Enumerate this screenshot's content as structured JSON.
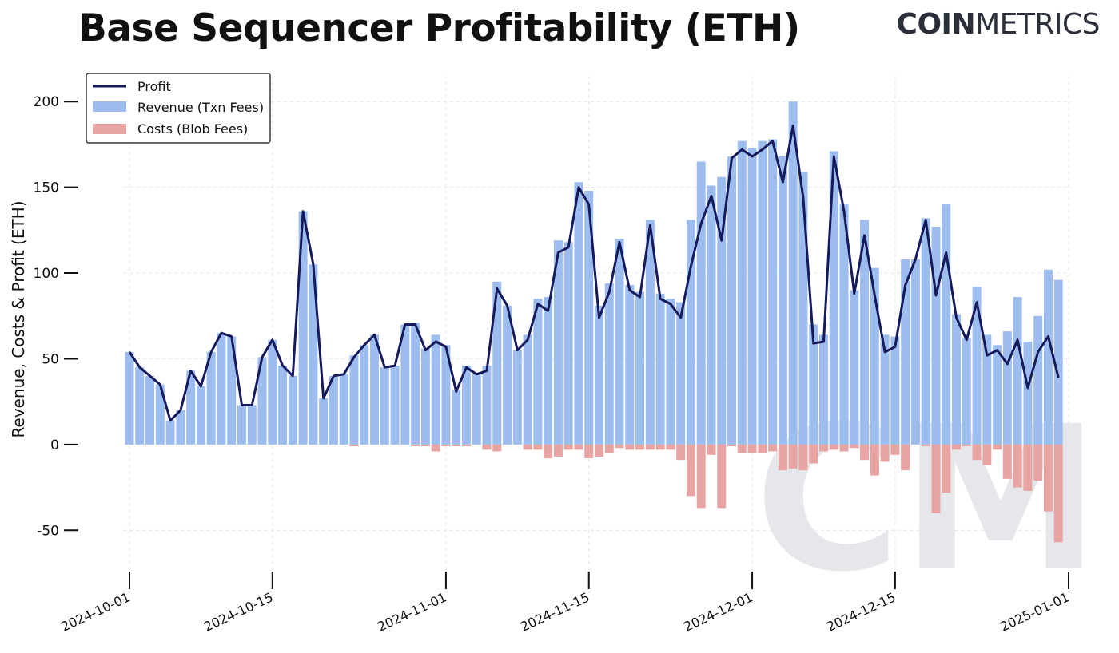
{
  "brand": {
    "bold": "COIN",
    "light": "METRICS"
  },
  "watermark": "CM",
  "chart_data": {
    "type": "bar",
    "title": "Base Sequencer Profitability (ETH)",
    "ylabel": "Revenue, Costs & Profit (ETH)",
    "xlabel": "",
    "ylim": [
      -75,
      215
    ],
    "yticks": [
      -50,
      0,
      50,
      100,
      150,
      200
    ],
    "x_start": "2024-10-01",
    "x_ticks": [
      "2024-10-01",
      "2024-10-15",
      "2024-11-01",
      "2024-11-15",
      "2024-12-01",
      "2024-12-15",
      "2025-01-01"
    ],
    "legend_position": "top-left",
    "grid": true,
    "series": [
      {
        "name": "Profit",
        "type": "line",
        "color": "#141a5c",
        "values": [
          54,
          45,
          40,
          35,
          14,
          20,
          43,
          34,
          54,
          65,
          63,
          23,
          23,
          51,
          61,
          46,
          40,
          136,
          105,
          27,
          40,
          41,
          51,
          58,
          64,
          45,
          46,
          70,
          70,
          55,
          60,
          57,
          31,
          45,
          41,
          43,
          91,
          81,
          55,
          61,
          82,
          78,
          112,
          115,
          150,
          140,
          74,
          89,
          118,
          90,
          86,
          128,
          85,
          82,
          74,
          104,
          129,
          145,
          119,
          167,
          172,
          168,
          172,
          177,
          153,
          186,
          144,
          59,
          60,
          168,
          136,
          88,
          122,
          87,
          54,
          57,
          93,
          108,
          131,
          87,
          112,
          74,
          61,
          83,
          52,
          55,
          47,
          61,
          33,
          54,
          63,
          39
        ]
      },
      {
        "name": "Revenue (Txn Fees)",
        "type": "bar",
        "color": "#9ebdef",
        "values": [
          54,
          45,
          40,
          35,
          14,
          20,
          43,
          34,
          54,
          65,
          63,
          23,
          23,
          51,
          61,
          46,
          40,
          136,
          105,
          27,
          40,
          41,
          52,
          58,
          64,
          45,
          46,
          70,
          71,
          56,
          64,
          58,
          32,
          46,
          41,
          46,
          95,
          81,
          55,
          64,
          85,
          86,
          119,
          118,
          153,
          148,
          81,
          94,
          120,
          93,
          89,
          131,
          88,
          85,
          83,
          131,
          165,
          151,
          156,
          168,
          177,
          173,
          177,
          178,
          168,
          200,
          159,
          70,
          64,
          171,
          140,
          90,
          131,
          103,
          64,
          63,
          108,
          108,
          132,
          127,
          140,
          76,
          62,
          92,
          64,
          58,
          66,
          86,
          60,
          75,
          102,
          96
        ]
      },
      {
        "name": "Costs (Blob Fees)",
        "type": "bar",
        "color": "#e8a3a3",
        "values": [
          0,
          0,
          0,
          0,
          0,
          0,
          0,
          0,
          0,
          0,
          0,
          0,
          0,
          0,
          0,
          0,
          0,
          0,
          0,
          0,
          0,
          0,
          -1,
          0,
          0,
          0,
          0,
          0,
          -1,
          -1,
          -4,
          -1,
          -1,
          -1,
          0,
          -3,
          -4,
          0,
          0,
          -3,
          -3,
          -8,
          -7,
          -3,
          -3,
          -8,
          -7,
          -5,
          -2,
          -3,
          -3,
          -3,
          -3,
          -3,
          -9,
          -30,
          -37,
          -6,
          -37,
          -1,
          -5,
          -5,
          -5,
          -4,
          -15,
          -14,
          -15,
          -11,
          -4,
          -3,
          -4,
          -2,
          -9,
          -18,
          -10,
          -6,
          -15,
          0,
          -1,
          -40,
          -28,
          -3,
          -1,
          -9,
          -12,
          -3,
          -20,
          -25,
          -27,
          -21,
          -39,
          -57
        ]
      }
    ]
  }
}
